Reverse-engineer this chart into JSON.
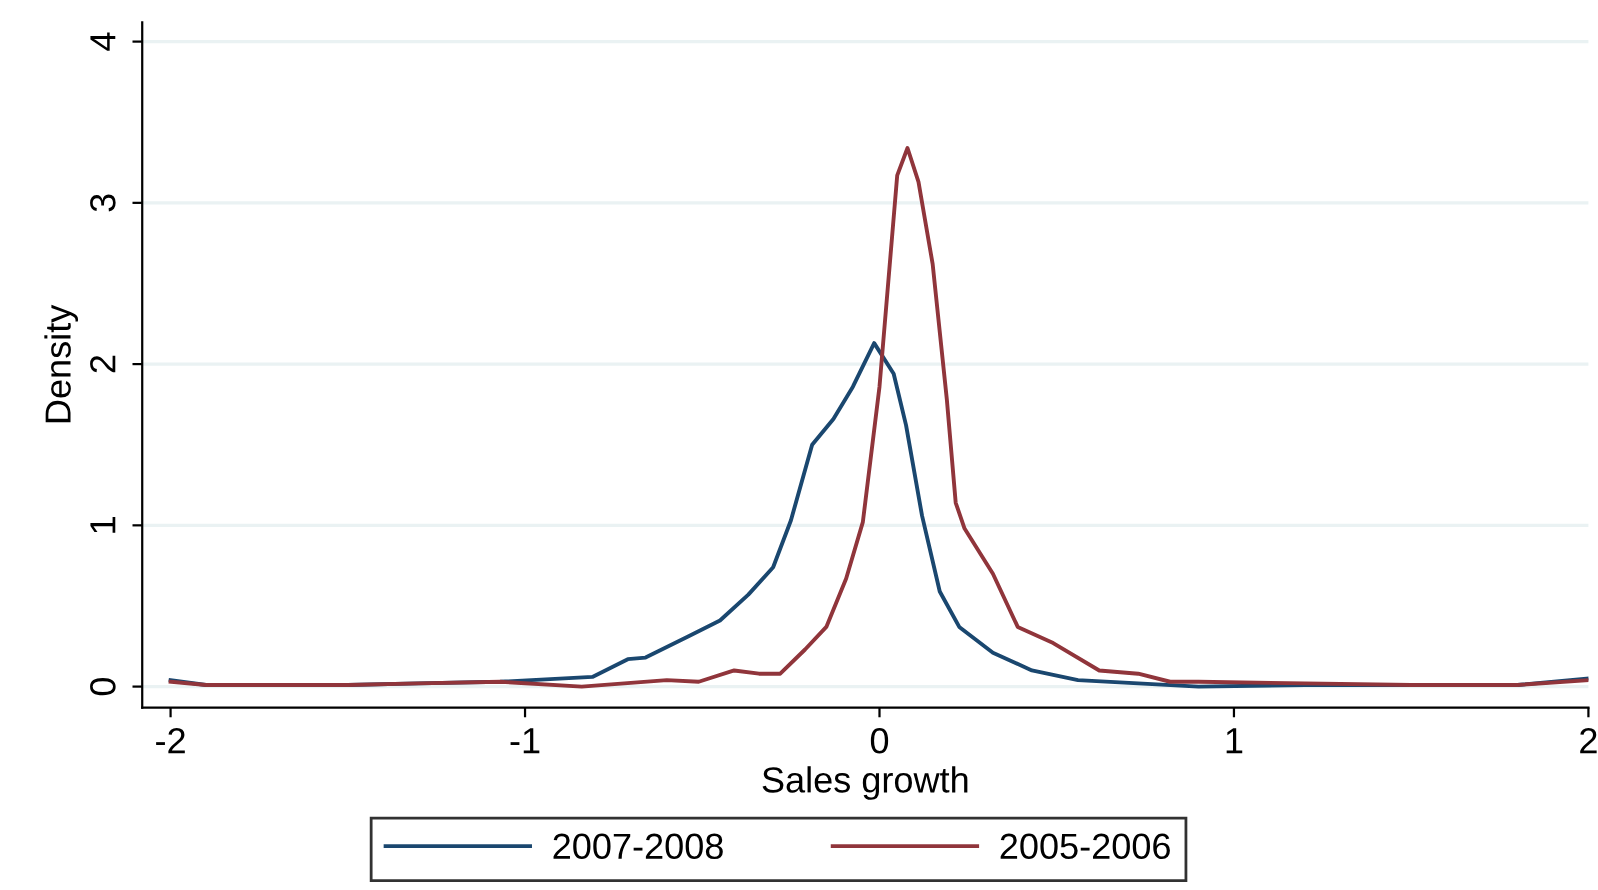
{
  "chart_data": {
    "type": "line",
    "xlabel": "Sales growth",
    "ylabel": "Density",
    "xlim": [
      -2.08,
      2.0
    ],
    "xticks": [
      -2,
      -1,
      0,
      1,
      2
    ],
    "ylim": [
      -0.13,
      4.12
    ],
    "yticks": [
      0,
      1,
      2,
      3,
      4
    ],
    "grid": "y",
    "legend": "bottom",
    "line_style": "solid",
    "marker": "none",
    "series": [
      {
        "name": "2007-2008",
        "color": "#1a476f",
        "x": [
          -2.0,
          -1.9,
          -1.7,
          -1.5,
          -1.3,
          -1.07,
          -0.81,
          -0.71,
          -0.66,
          -0.54,
          -0.45,
          -0.37,
          -0.3,
          -0.25,
          -0.19,
          -0.13,
          -0.075,
          -0.015,
          0.04,
          0.075,
          0.12,
          0.17,
          0.225,
          0.32,
          0.43,
          0.56,
          0.9,
          1.2,
          1.5,
          1.8,
          2.0
        ],
        "values": [
          0.04,
          0.01,
          0.01,
          0.01,
          0.02,
          0.03,
          0.06,
          0.17,
          0.18,
          0.31,
          0.41,
          0.57,
          0.74,
          1.03,
          1.5,
          1.66,
          1.86,
          2.13,
          1.94,
          1.62,
          1.06,
          0.59,
          0.37,
          0.21,
          0.1,
          0.04,
          0.0,
          0.01,
          0.01,
          0.01,
          0.05
        ]
      },
      {
        "name": "2005-2006",
        "color": "#90353b",
        "x": [
          -2.0,
          -1.9,
          -1.7,
          -1.5,
          -1.3,
          -1.07,
          -0.84,
          -0.6,
          -0.51,
          -0.41,
          -0.34,
          -0.28,
          -0.21,
          -0.15,
          -0.094,
          -0.047,
          0.0,
          0.05,
          0.079,
          0.11,
          0.15,
          0.19,
          0.215,
          0.24,
          0.32,
          0.39,
          0.49,
          0.62,
          0.73,
          0.82,
          0.9,
          1.2,
          1.5,
          1.8,
          2.0
        ],
        "values": [
          0.03,
          0.01,
          0.01,
          0.01,
          0.02,
          0.03,
          0.0,
          0.04,
          0.03,
          0.1,
          0.08,
          0.08,
          0.23,
          0.37,
          0.67,
          1.02,
          1.86,
          3.17,
          3.34,
          3.13,
          2.62,
          1.78,
          1.14,
          0.98,
          0.7,
          0.37,
          0.27,
          0.1,
          0.08,
          0.03,
          0.03,
          0.02,
          0.01,
          0.01,
          0.04
        ]
      }
    ]
  }
}
